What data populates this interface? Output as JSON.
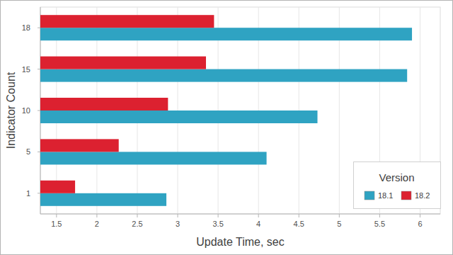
{
  "chart_data": {
    "type": "bar",
    "orientation": "horizontal",
    "x_label": "Update Time, sec",
    "y_label": "Indicator Count",
    "categories": [
      "1",
      "5",
      "10",
      "15",
      "18"
    ],
    "series": [
      {
        "name": "18.1",
        "color": "#2fa3c2",
        "values": [
          2.86,
          4.1,
          4.73,
          5.84,
          5.9
        ]
      },
      {
        "name": "18.2",
        "color": "#dc2130",
        "values": [
          1.73,
          2.27,
          2.88,
          3.35,
          3.45
        ]
      }
    ],
    "xlim": [
      1.3,
      6.25
    ],
    "xticks": [
      1.5,
      2,
      2.5,
      3,
      3.5,
      4,
      4.5,
      5,
      5.5,
      6
    ],
    "grid": true,
    "legend": "bottom-right",
    "legend_title": "Version"
  }
}
